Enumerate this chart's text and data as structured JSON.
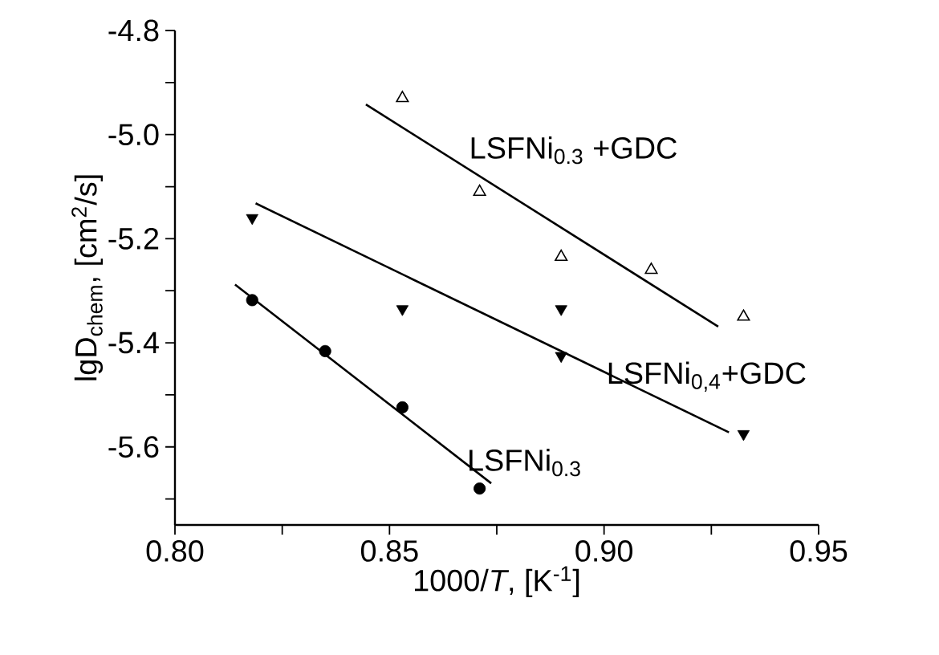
{
  "chart_data": {
    "type": "scatter",
    "xlabel": "1000/*T*, [K$^{-1}$]",
    "ylabel": "lgD$_{chem}$, [cm$^{2}$/s]",
    "xlim": [
      0.8,
      0.95
    ],
    "ylim": [
      -5.75,
      -4.8
    ],
    "xticks": [
      {
        "value": 0.8,
        "label": "0.80"
      },
      {
        "value": 0.825,
        "label": null
      },
      {
        "value": 0.85,
        "label": "0.85"
      },
      {
        "value": 0.875,
        "label": null
      },
      {
        "value": 0.9,
        "label": "0.90"
      },
      {
        "value": 0.925,
        "label": null
      },
      {
        "value": 0.95,
        "label": "0.95"
      }
    ],
    "yticks": [
      {
        "value": -4.8,
        "label": "-4.8"
      },
      {
        "value": -4.9,
        "label": null
      },
      {
        "value": -5.0,
        "label": "-5.0"
      },
      {
        "value": -5.1,
        "label": null
      },
      {
        "value": -5.2,
        "label": "-5.2"
      },
      {
        "value": -5.3,
        "label": null
      },
      {
        "value": -5.4,
        "label": "-5.4"
      },
      {
        "value": -5.5,
        "label": null
      },
      {
        "value": -5.6,
        "label": "-5.6"
      },
      {
        "value": -5.7,
        "label": null
      }
    ],
    "grid": false,
    "series": [
      {
        "name": "LSFNi$_{0.3}$ +GDC",
        "color": "#000000",
        "marker": "triangle",
        "x": [
          0.853,
          0.871,
          0.89,
          0.911,
          0.9325
        ],
        "values": [
          -4.93,
          -5.11,
          -5.235,
          -5.26,
          -5.35
        ]
      },
      {
        "name": "LSFNi$_{0,4}$+GDC",
        "color": "#000000",
        "marker": "triangle-down",
        "x": [
          0.818,
          0.853,
          0.89,
          0.89,
          0.9325
        ],
        "values": [
          -5.16,
          -5.335,
          -5.335,
          -5.425,
          -5.575
        ]
      },
      {
        "name": "LSFNi$_{0.3}$",
        "color": "#000000",
        "marker": "circle",
        "x": [
          0.818,
          0.835,
          0.853,
          0.871
        ],
        "values": [
          -5.318,
          -5.416,
          -5.524,
          -5.68
        ]
      },
      {
        "type": "line",
        "color": "#000000",
        "marker": "none",
        "x": [
          0.8445,
          0.9266
        ],
        "values": [
          -4.942,
          -5.369
        ]
      },
      {
        "type": "line",
        "color": "#000000",
        "marker": "none",
        "x": [
          0.8188,
          0.9291
        ],
        "values": [
          -5.132,
          -5.572
        ]
      },
      {
        "type": "line",
        "color": "#000000",
        "marker": "none",
        "x": [
          0.814,
          0.8737
        ],
        "values": [
          -5.288,
          -5.67
        ]
      }
    ]
  }
}
